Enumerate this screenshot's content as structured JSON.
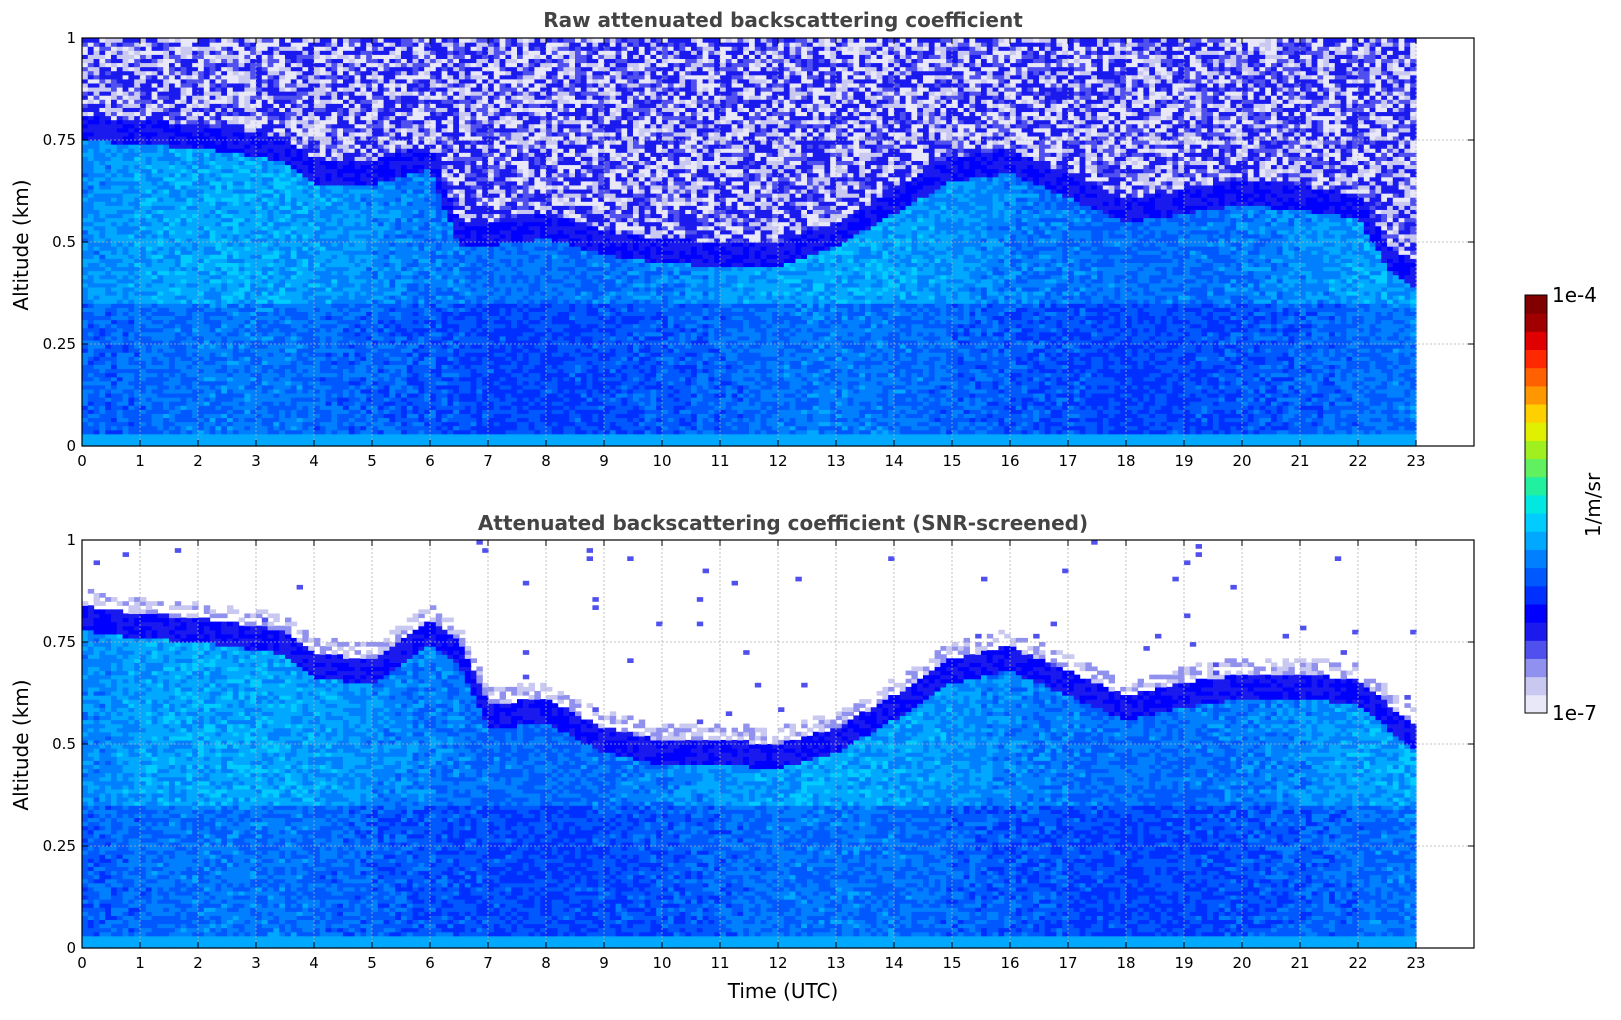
{
  "chart_data": [
    {
      "type": "heatmap",
      "title": "Raw attenuated backscattering coefficient",
      "xlabel": "",
      "ylabel": "Altitude (km)",
      "xlim": [
        0,
        24
      ],
      "ylim": [
        0,
        1
      ],
      "xticks": [
        "0",
        "1",
        "2",
        "3",
        "4",
        "5",
        "6",
        "7",
        "8",
        "9",
        "10",
        "11",
        "12",
        "13",
        "14",
        "15",
        "16",
        "17",
        "18",
        "19",
        "20",
        "21",
        "22",
        "23"
      ],
      "yticks": [
        "0",
        "0.25",
        "0.5",
        "0.75",
        "1"
      ],
      "data_end_hour": 23,
      "screened": false,
      "boundary_layer_top_km": {
        "x": [
          0,
          1,
          2,
          3,
          3.5,
          4,
          5,
          6,
          6.5,
          7,
          8,
          9,
          10,
          11,
          12,
          13,
          14,
          15,
          16,
          17,
          18,
          19,
          20,
          21,
          22,
          22.5,
          23
        ],
        "y": [
          0.81,
          0.8,
          0.79,
          0.77,
          0.76,
          0.7,
          0.7,
          0.74,
          0.55,
          0.55,
          0.57,
          0.53,
          0.51,
          0.5,
          0.5,
          0.55,
          0.63,
          0.71,
          0.73,
          0.67,
          0.61,
          0.63,
          0.65,
          0.64,
          0.62,
          0.5,
          0.45
        ]
      },
      "grid": true
    },
    {
      "type": "heatmap",
      "title": "Attenuated backscattering coefficient (SNR-screened)",
      "xlabel": "Time (UTC)",
      "ylabel": "Altitude (km)",
      "xlim": [
        0,
        24
      ],
      "ylim": [
        0,
        1
      ],
      "xticks": [
        "0",
        "1",
        "2",
        "3",
        "4",
        "5",
        "6",
        "7",
        "8",
        "9",
        "10",
        "11",
        "12",
        "13",
        "14",
        "15",
        "16",
        "17",
        "18",
        "19",
        "20",
        "21",
        "22",
        "23"
      ],
      "yticks": [
        "0",
        "0.25",
        "0.5",
        "0.75",
        "1"
      ],
      "data_end_hour": 23,
      "screened": true,
      "boundary_layer_top_km": {
        "x": [
          0,
          1,
          2,
          3,
          3.5,
          4,
          5,
          6,
          6.5,
          7,
          8,
          9,
          10,
          11,
          12,
          13,
          14,
          15,
          16,
          17,
          18,
          19,
          20,
          21,
          22,
          22.5,
          23
        ],
        "y": [
          0.84,
          0.82,
          0.81,
          0.79,
          0.78,
          0.72,
          0.71,
          0.8,
          0.76,
          0.6,
          0.61,
          0.54,
          0.51,
          0.51,
          0.5,
          0.54,
          0.62,
          0.71,
          0.74,
          0.68,
          0.62,
          0.65,
          0.67,
          0.67,
          0.66,
          0.6,
          0.55
        ]
      },
      "grid": true
    }
  ],
  "colorbar": {
    "label": "1/m/sr",
    "min_label": "1e-7",
    "max_label": "1e-4",
    "colors": [
      "#e8e8f8",
      "#c8c8f0",
      "#9090ee",
      "#5050ee",
      "#1a1aee",
      "#0000ff",
      "#0030ff",
      "#0058ff",
      "#0080ff",
      "#00a8ff",
      "#00ccff",
      "#00e8e0",
      "#20f0a0",
      "#60f060",
      "#a0f020",
      "#e0f000",
      "#ffd000",
      "#ff9800",
      "#ff6000",
      "#ff2800",
      "#e00000",
      "#a00000",
      "#800000"
    ]
  }
}
